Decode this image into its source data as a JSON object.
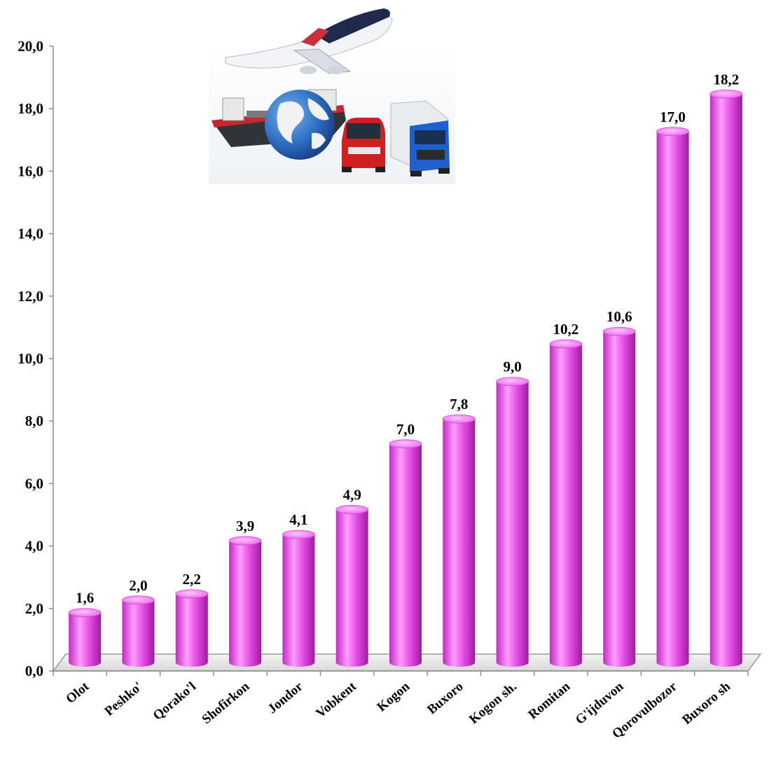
{
  "chart_data": {
    "type": "bar",
    "categories": [
      "Olot",
      "Peshko'",
      "Qorako'l",
      "Shofirkon",
      "Jondor",
      "Vobkent",
      "Kogon",
      "Buxoro",
      "Kogon sh.",
      "Romitan",
      "G'ijduvon",
      "Qorovulbozor",
      "Buxoro sh"
    ],
    "values": [
      1.6,
      2.0,
      2.2,
      3.9,
      4.1,
      4.9,
      7.0,
      7.8,
      9.0,
      10.2,
      10.6,
      17.0,
      18.2
    ],
    "value_labels": [
      "1,6",
      "2,0",
      "2,2",
      "3,9",
      "4,1",
      "4,9",
      "7,0",
      "7,8",
      "9,0",
      "10,2",
      "10,6",
      "17,0",
      "18,2"
    ],
    "y_ticks": [
      "0,0",
      "2,0",
      "4,0",
      "6,0",
      "8,0",
      "10,0",
      "12,0",
      "14,0",
      "16,0",
      "18,0",
      "20,0"
    ],
    "ylim": [
      0,
      20
    ],
    "title": "",
    "xlabel": "",
    "ylabel": "",
    "grid": false,
    "style": "3d-cylinder",
    "colors": {
      "bar_light": "#ff9cff",
      "bar_mid": "#e645e6",
      "bar_dark": "#b020b0",
      "floor": "#e6e6e6",
      "axis": "#8c8c8c"
    }
  },
  "decoration": {
    "illustration": "transport-logistics-icon"
  }
}
